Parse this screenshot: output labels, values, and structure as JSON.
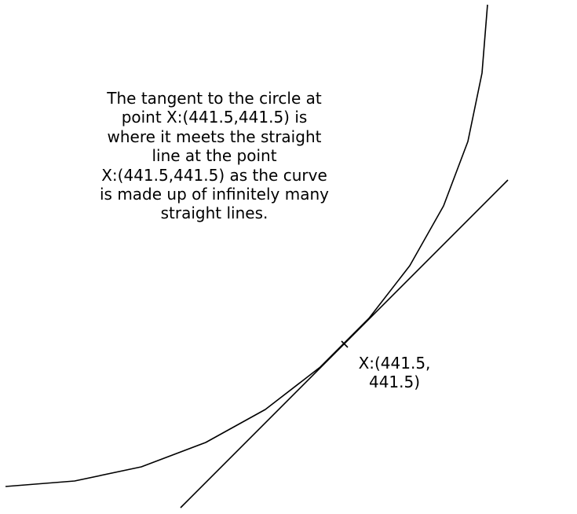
{
  "explanation": {
    "lines": [
      "The tangent to the circle at",
      "point X:(441.5,441.5) is",
      "where it meets the straight",
      "line at the point",
      "X:(441.5,441.5) as the curve",
      "is made up of infinitely many",
      "straight lines."
    ]
  },
  "point": {
    "label_lines": [
      "X:(441.5,",
      "441.5)"
    ]
  },
  "colors": {
    "stroke": "#000000",
    "background": "#ffffff"
  }
}
